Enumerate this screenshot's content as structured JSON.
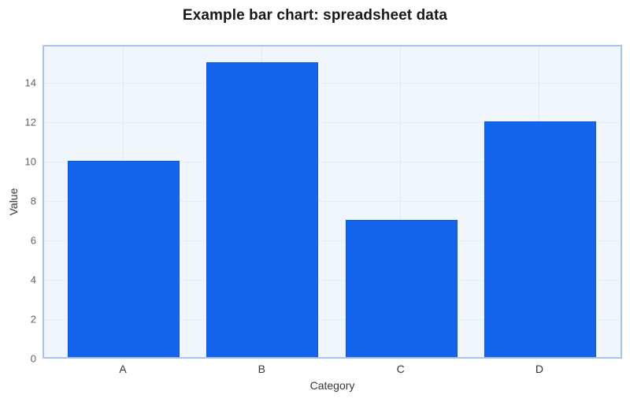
{
  "chart_data": {
    "type": "bar",
    "title": "Example bar chart: spreadsheet data",
    "categories": [
      "A",
      "B",
      "C",
      "D"
    ],
    "values": [
      10,
      15,
      7,
      12
    ],
    "xlabel": "Category",
    "ylabel": "Value",
    "ylim": [
      0,
      15.92
    ],
    "yticks": [
      0,
      2,
      4,
      6,
      8,
      10,
      12,
      14
    ],
    "grid": true,
    "legend": false,
    "colors": {
      "bar_fill": "#1565ec",
      "bar_border": "#0e57d9",
      "plot_bg": "#f1f5fc",
      "plot_border": "#a6c4f2",
      "gridline_h": "#e6edfa",
      "gridline_v": "#dce7f8",
      "title_text": "#16191d",
      "axis_label_text": "#33363a",
      "x_tick_text": "#33363a",
      "y_tick_text": "#5d6268"
    }
  }
}
